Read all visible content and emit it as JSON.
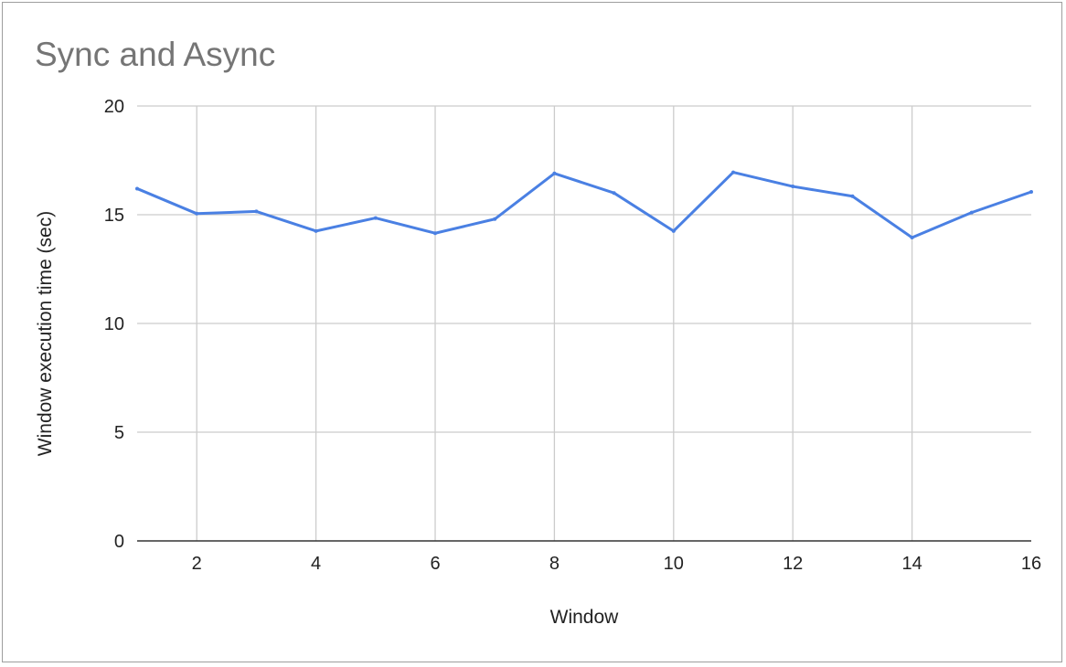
{
  "chart_data": {
    "type": "line",
    "title": "Sync and Async",
    "xlabel": "Window",
    "ylabel": "Window execution time (sec)",
    "xlim": [
      1,
      16
    ],
    "ylim": [
      0,
      20
    ],
    "x_ticks": [
      2,
      4,
      6,
      8,
      10,
      12,
      14,
      16
    ],
    "y_ticks": [
      0,
      5,
      10,
      15,
      20
    ],
    "grid": true,
    "legend": "none",
    "series": [
      {
        "color": "#4a80e3",
        "x": [
          1,
          2,
          3,
          4,
          5,
          6,
          7,
          8,
          9,
          10,
          11,
          12,
          13,
          14,
          15,
          16
        ],
        "y": [
          16.2,
          15.05,
          15.15,
          14.25,
          14.85,
          14.15,
          14.8,
          16.9,
          16.0,
          14.25,
          16.95,
          16.3,
          15.85,
          13.95,
          15.1,
          16.05
        ]
      }
    ]
  }
}
